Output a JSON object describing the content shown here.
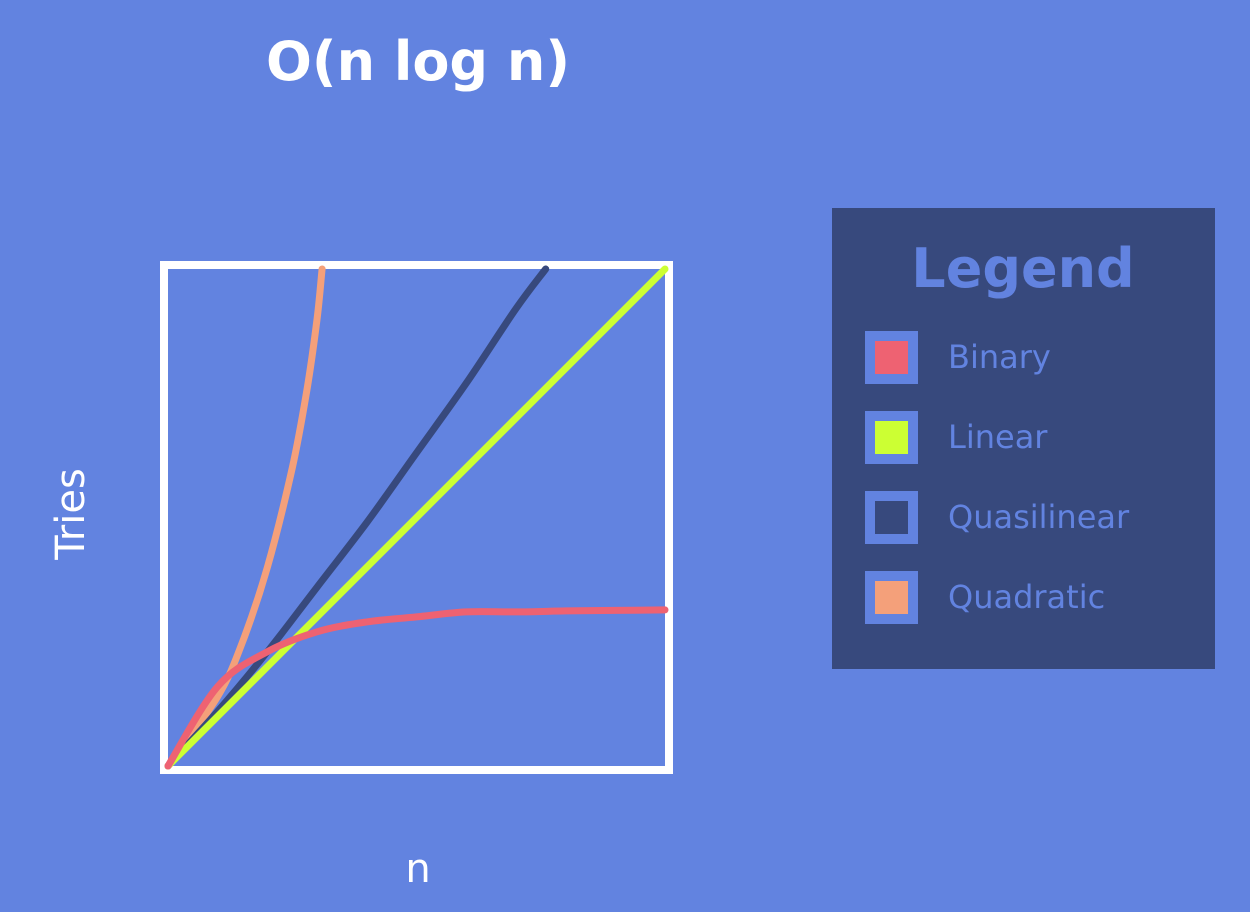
{
  "colors": {
    "background": "#6283E0",
    "plot_frame": "#FFFFFF",
    "legend_bg": "#37497D",
    "legend_text": "#6283E0",
    "swatch_frame": "#6283E0"
  },
  "chart_data": {
    "type": "line",
    "title": "O(n log n)",
    "xlabel": "n",
    "ylabel": "Tries",
    "xlim": [
      0,
      1
    ],
    "ylim": [
      0,
      1
    ],
    "grid": false,
    "legend_placement": "right",
    "legend_title": "Legend",
    "series": [
      {
        "name": "Binary",
        "color": "#EE6272",
        "swatch_fill": "#EE6272",
        "x": [
          0,
          0.1,
          0.2,
          0.3,
          0.4,
          0.5,
          0.6,
          0.7,
          0.8,
          0.9,
          1.0
        ],
        "y": [
          0,
          0.16,
          0.23,
          0.27,
          0.29,
          0.3,
          0.31,
          0.31,
          0.312,
          0.313,
          0.314
        ]
      },
      {
        "name": "Linear",
        "color": "#CCFF33",
        "swatch_fill": "#CCFF33",
        "x": [
          0,
          1.0
        ],
        "y": [
          0,
          1.0
        ]
      },
      {
        "name": "Quasilinear",
        "color": "#37497D",
        "swatch_fill": "#37497D",
        "x": [
          0,
          0.1,
          0.2,
          0.3,
          0.4,
          0.5,
          0.6,
          0.7,
          0.76
        ],
        "y": [
          0,
          0.11,
          0.23,
          0.36,
          0.49,
          0.63,
          0.77,
          0.92,
          1.0
        ]
      },
      {
        "name": "Quadratic",
        "color": "#F4A07A",
        "swatch_fill": "#F4A07A",
        "x": [
          0,
          0.1,
          0.15,
          0.2,
          0.25,
          0.28,
          0.3,
          0.31
        ],
        "y": [
          0,
          0.14,
          0.25,
          0.4,
          0.6,
          0.76,
          0.9,
          1.0
        ]
      }
    ]
  }
}
